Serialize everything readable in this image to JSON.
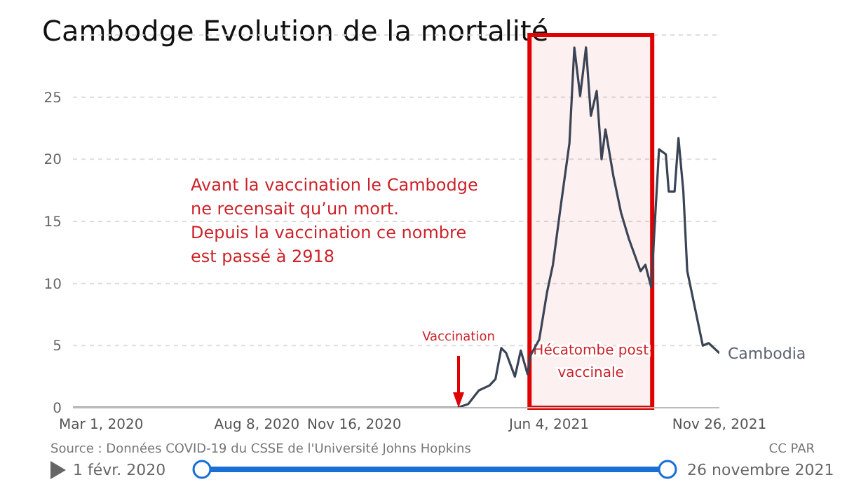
{
  "chart_data": {
    "type": "line",
    "title": "Cambodge Evolution de la mortalité",
    "xlim": [
      "2020-02-01",
      "2021-11-26"
    ],
    "xticks": [
      {
        "value": "2020-03-01",
        "label": "Mar 1, 2020"
      },
      {
        "value": "2020-08-08",
        "label": "Aug 8, 2020"
      },
      {
        "value": "2020-11-16",
        "label": "Nov 16, 2020"
      },
      {
        "value": "2021-06-04",
        "label": "Jun 4, 2021"
      },
      {
        "value": "2021-11-26",
        "label": "Nov 26, 2021"
      }
    ],
    "ylim": [
      0,
      30
    ],
    "yticks": [
      0,
      5,
      10,
      15,
      20,
      25
    ],
    "grid": "y",
    "legend": false,
    "marker": "none",
    "line_style": "solid",
    "series": [
      {
        "name": "Cambodia",
        "color": "#3a4456",
        "x": [
          "2020-02-01",
          "2021-03-02",
          "2021-03-13",
          "2021-03-24",
          "2021-04-04",
          "2021-04-10",
          "2021-04-16",
          "2021-04-21",
          "2021-04-30",
          "2021-05-06",
          "2021-05-13",
          "2021-05-16",
          "2021-05-25",
          "2021-06-02",
          "2021-06-08",
          "2021-06-16",
          "2021-06-25",
          "2021-06-30",
          "2021-07-06",
          "2021-07-12",
          "2021-07-17",
          "2021-07-23",
          "2021-07-28",
          "2021-08-01",
          "2021-08-09",
          "2021-08-17",
          "2021-08-25",
          "2021-09-06",
          "2021-09-11",
          "2021-09-17",
          "2021-09-25",
          "2021-10-02",
          "2021-10-05",
          "2021-10-11",
          "2021-10-15",
          "2021-10-20",
          "2021-10-24",
          "2021-11-01",
          "2021-11-09",
          "2021-11-15",
          "2021-11-26"
        ],
        "values": [
          0,
          0,
          0.3,
          1.4,
          1.8,
          2.3,
          4.8,
          4.4,
          2.5,
          4.6,
          2.7,
          4.2,
          5.5,
          9.3,
          11.5,
          16.2,
          21.3,
          29,
          25.1,
          29,
          23.5,
          25.5,
          20,
          22.4,
          18.7,
          15.7,
          13.6,
          11,
          11.5,
          9.7,
          20.8,
          20.4,
          17.4,
          17.4,
          21.7,
          17.4,
          11,
          8,
          5,
          5.2,
          4.4
        ]
      }
    ],
    "bands": [
      {
        "axis": "x",
        "from": "2021-05-15",
        "to": "2021-09-18",
        "label": "Hécatombe post vaccinale",
        "color": "#e00000"
      }
    ],
    "annotations": [
      "Avant la vaccination le  Cambodge\nne recensait qu’un mort.\nDepuis la vaccination ce nombre\nest passé à 2918",
      "Vaccination",
      "Source : Données COVID-19 du CSSE de l'Université Johns Hopkins",
      "CC PAR",
      "1 févr. 2020",
      "26 novembre 2021"
    ]
  }
}
